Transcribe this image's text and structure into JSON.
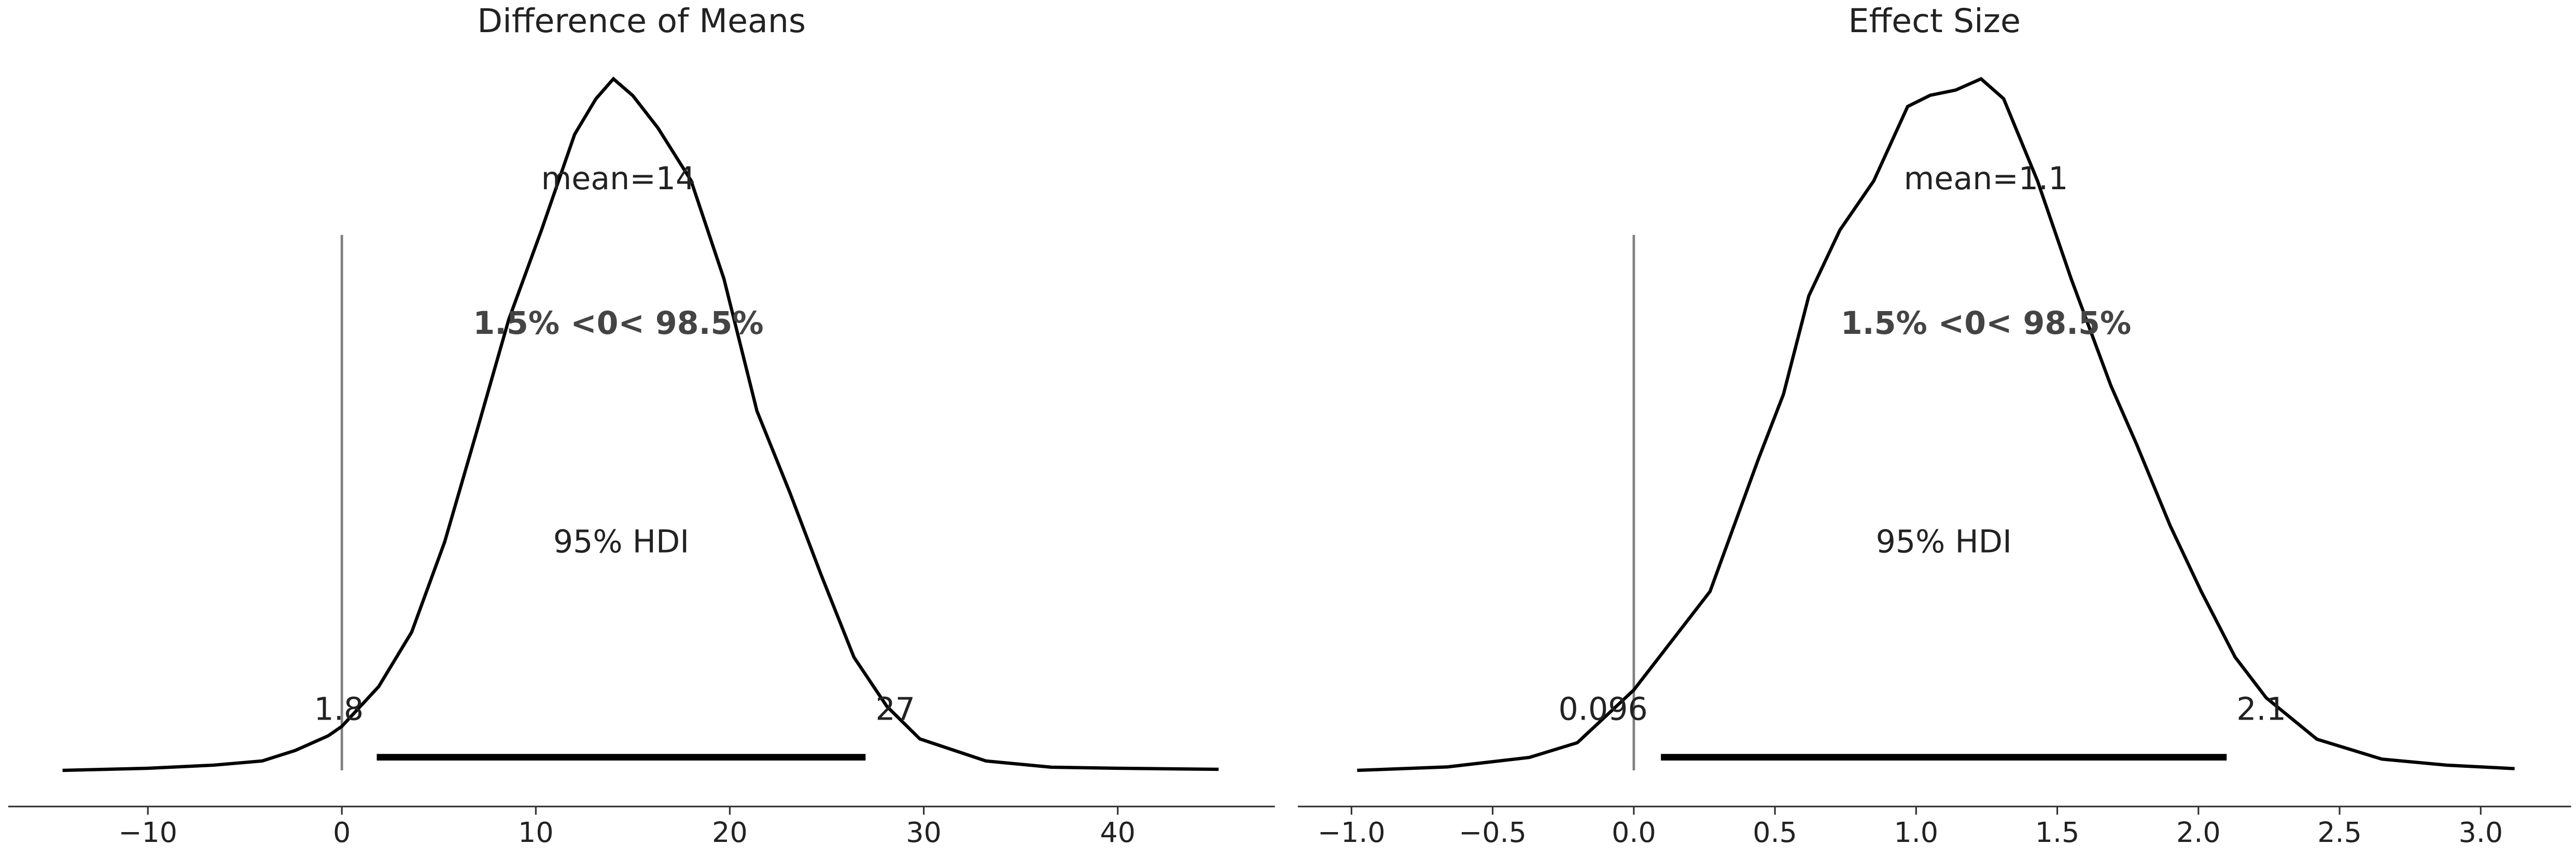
{
  "chart_data": [
    {
      "type": "line",
      "title": "Difference of Means",
      "color": "#000000",
      "x": [
        -14.4,
        -10,
        -6.6,
        -4.1,
        -2.4,
        -0.7,
        0,
        1.9,
        3.6,
        5.3,
        6.9,
        8.6,
        10.3,
        12.0,
        13.1,
        14.0,
        15.0,
        16.3,
        18.0,
        19.7,
        21.4,
        23.1,
        24.7,
        26.4,
        28.1,
        29.8,
        33.2,
        36.6,
        40.0,
        45.2
      ],
      "values": [
        0.0,
        0.0002,
        0.0005,
        0.0009,
        0.0019,
        0.0033,
        0.0042,
        0.008,
        0.0132,
        0.0218,
        0.032,
        0.043,
        0.0516,
        0.0607,
        0.0641,
        0.066,
        0.0644,
        0.0613,
        0.0563,
        0.0469,
        0.0343,
        0.0265,
        0.0187,
        0.0108,
        0.0061,
        0.003,
        0.0009,
        0.0003,
        0.0002,
        0.0001
      ],
      "xlim": [
        -17.2,
        48.1
      ],
      "xticks": [
        {
          "value": -10,
          "label": "−10"
        },
        0,
        10,
        20,
        30,
        40
      ],
      "mean_label": "mean=14",
      "ref_val": 0,
      "ref_color": "#808080",
      "ref_label": "1.5% <0< 98.5%",
      "hdi": [
        1.8,
        27
      ],
      "hdi_label": "95% HDI"
    },
    {
      "type": "line",
      "title": "Effect Size",
      "color": "#000000",
      "x": [
        -0.98,
        -0.66,
        -0.37,
        -0.2,
        0,
        0.27,
        0.44,
        0.53,
        0.62,
        0.73,
        0.85,
        0.97,
        1.05,
        1.14,
        1.23,
        1.31,
        1.43,
        1.55,
        1.69,
        1.78,
        1.9,
        2.01,
        2.13,
        2.24,
        2.42,
        2.65,
        2.88,
        3.12
      ],
      "values": [
        0.0,
        0.004,
        0.015,
        0.032,
        0.093,
        0.207,
        0.359,
        0.435,
        0.549,
        0.625,
        0.682,
        0.768,
        0.781,
        0.787,
        0.8,
        0.777,
        0.682,
        0.568,
        0.445,
        0.378,
        0.283,
        0.207,
        0.131,
        0.084,
        0.036,
        0.013,
        0.006,
        0.002
      ],
      "xlim": [
        -1.19,
        3.32
      ],
      "xticks": [
        {
          "value": -1.0,
          "label": "−1.0"
        },
        {
          "value": -0.5,
          "label": "−0.5"
        },
        {
          "value": 0.0,
          "label": "0.0"
        },
        0.5,
        {
          "value": 1.0,
          "label": "1.0"
        },
        1.5,
        {
          "value": 2.0,
          "label": "2.0"
        },
        2.5,
        {
          "value": 3.0,
          "label": "3.0"
        }
      ],
      "mean_label": "mean=1.1",
      "ref_val": 0,
      "ref_color": "#808080",
      "ref_label": "1.5% <0< 98.5%",
      "hdi": [
        0.096,
        2.1
      ],
      "hdi_label": "95% HDI"
    }
  ]
}
